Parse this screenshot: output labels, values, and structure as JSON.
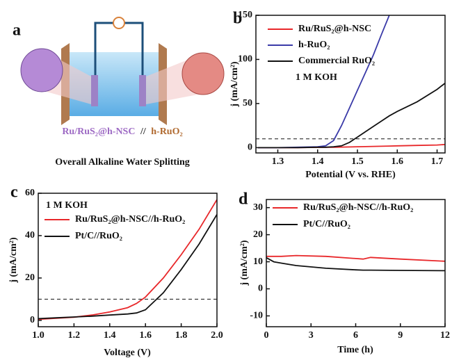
{
  "panel_a": {
    "panel_label": "a",
    "electrodes": [
      "Ru/RuS₂@h-NSC",
      "//",
      "h-RuO₂"
    ],
    "caption": "Overall Alkaline Water Splitting"
  },
  "chart_data": [
    {
      "type": "line",
      "panel_label": "b",
      "xlabel": "Potential (V vs. RHE)",
      "ylabel": "j (mA/cm²)",
      "annotation": "1 M KOH",
      "x": [
        1.25,
        1.3,
        1.35,
        1.4,
        1.42,
        1.44,
        1.46,
        1.48,
        1.5,
        1.52,
        1.54,
        1.56,
        1.58,
        1.6,
        1.65,
        1.7,
        1.72
      ],
      "series": [
        {
          "name": "Ru/RuS₂@h-NSC",
          "color": "#e8272a",
          "values": [
            0,
            0,
            0,
            0.3,
            0.4,
            0.5,
            0.6,
            0.8,
            1,
            1.2,
            1.4,
            1.6,
            1.8,
            2,
            2.5,
            3,
            3.5
          ]
        },
        {
          "name": "h-RuO₂",
          "color": "#3a3aa8",
          "values": [
            0,
            0,
            0.5,
            1,
            2,
            8,
            25,
            45,
            65,
            85,
            105,
            128,
            150,
            null,
            null,
            null,
            null
          ]
        },
        {
          "name": "Commercial RuO₂",
          "color": "#111111",
          "values": [
            0,
            0,
            0,
            0.5,
            0.5,
            1,
            2,
            6,
            12,
            18,
            24,
            30,
            36,
            41,
            52,
            66,
            73
          ]
        }
      ],
      "hline": 10,
      "xlim": [
        1.245,
        1.72
      ],
      "ylim": [
        -6,
        150
      ],
      "xticks": [
        1.3,
        1.4,
        1.5,
        1.6,
        1.7
      ],
      "yticks": [
        0,
        50,
        100,
        150
      ],
      "legend": "upper left"
    },
    {
      "type": "line",
      "panel_label": "c",
      "xlabel": "Voltage (V)",
      "ylabel": "j (mA/cm²)",
      "annotation": "1 M KOH",
      "x": [
        1.0,
        1.1,
        1.2,
        1.3,
        1.4,
        1.5,
        1.55,
        1.6,
        1.7,
        1.8,
        1.9,
        2.0
      ],
      "series": [
        {
          "name": "Ru/RuS₂@h-NSC//h-RuO₂",
          "color": "#e8272a",
          "values": [
            0.5,
            1,
            1.5,
            2.5,
            4,
            6,
            8,
            11,
            20,
            31,
            43,
            57
          ]
        },
        {
          "name": "Pt/C//RuO₂",
          "color": "#111111",
          "values": [
            0.8,
            1.2,
            1.6,
            2,
            2.5,
            3,
            3.5,
            5,
            13,
            24,
            36,
            50
          ]
        }
      ],
      "hline": 10,
      "xlim": [
        1.0,
        2.0
      ],
      "ylim": [
        -3,
        60
      ],
      "xticks": [
        {
          "value": 1,
          "label": "1.0"
        },
        1.2,
        1.4,
        1.6,
        1.8,
        {
          "value": 2,
          "label": "2.0"
        }
      ],
      "yticks": [
        0,
        20,
        40,
        60
      ],
      "legend": "upper left"
    },
    {
      "type": "line",
      "panel_label": "d",
      "xlabel": "Time (h)",
      "ylabel": "j (mA/cm²)",
      "x": [
        0,
        0.5,
        1,
        2,
        4,
        6,
        6.5,
        7,
        9,
        12
      ],
      "series": [
        {
          "name": "Ru/RuS₂@h-NSC//h-RuO₂",
          "color": "#e8272a",
          "values": [
            12,
            12,
            12,
            12.3,
            12,
            11.2,
            11,
            11.6,
            11,
            10.2
          ]
        },
        {
          "name": "Pt/C//RuO₂",
          "color": "#111111",
          "values": [
            11.5,
            10,
            9.5,
            8.6,
            7.6,
            7,
            6.9,
            6.9,
            6.8,
            6.7
          ]
        }
      ],
      "xlim": [
        0,
        12
      ],
      "ylim": [
        -14,
        33
      ],
      "xticks": [
        0,
        3,
        6,
        9,
        12
      ],
      "yticks": [
        -10,
        0,
        10,
        20,
        30
      ],
      "legend": "upper left"
    }
  ]
}
